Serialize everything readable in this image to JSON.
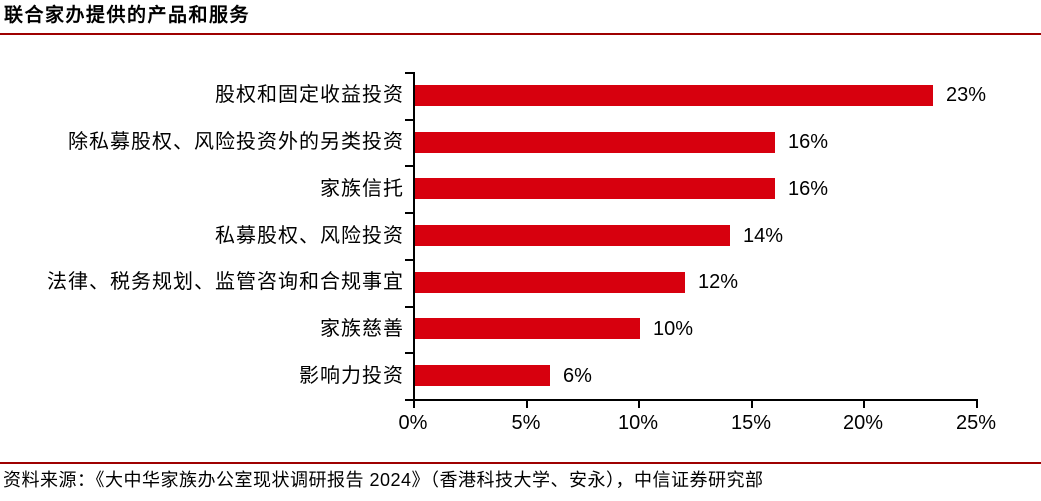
{
  "header": {
    "title": "联合家办提供的产品和服务"
  },
  "chart_data": {
    "type": "bar",
    "orientation": "horizontal",
    "title": "联合家办提供的产品和服务",
    "categories": [
      "股权和固定收益投资",
      "除私募股权、风险投资外的另类投资",
      "家族信托",
      "私募股权、风险投资",
      "法律、税务规划、监管咨询和合规事宜",
      "家族慈善",
      "影响力投资"
    ],
    "values": [
      23,
      16,
      16,
      14,
      12,
      10,
      6
    ],
    "value_labels": [
      "23%",
      "16%",
      "16%",
      "14%",
      "12%",
      "10%",
      "6%"
    ],
    "x_tick_values": [
      0,
      5,
      10,
      15,
      20,
      25
    ],
    "x_ticks": [
      "0%",
      "5%",
      "10%",
      "15%",
      "20%",
      "25%"
    ],
    "xlim": [
      0,
      25
    ],
    "xlabel": "",
    "ylabel": "",
    "grid": false,
    "legend": false,
    "bar_color": "#d7000e",
    "value_label_position": "outside-end"
  },
  "footer": {
    "source": "资料来源：《大中华家族办公室现状调研报告 2024》（香港科技大学、安永），中信证券研究部"
  },
  "colors": {
    "bar": "#d7000e",
    "divider": "#9e0000",
    "axis": "#000000",
    "text": "#000000",
    "background": "#ffffff"
  }
}
